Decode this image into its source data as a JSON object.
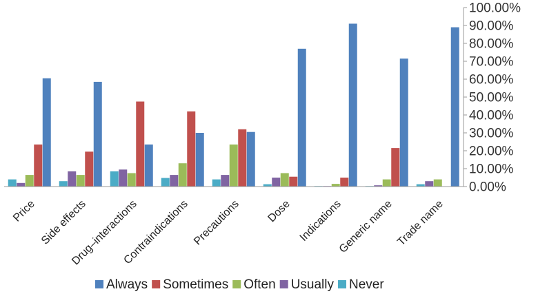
{
  "chart_data": {
    "type": "bar",
    "categories": [
      "Price",
      "Side effects",
      "Drug–interactions",
      "Contraindications",
      "Precautions",
      "Dose",
      "Indications",
      "Generic name",
      "Trade name"
    ],
    "series": [
      {
        "name": "Never",
        "color": "#4bacc6",
        "values": [
          4.0,
          3.0,
          8.5,
          4.8,
          4.0,
          1.3,
          0.3,
          0.3,
          1.3
        ]
      },
      {
        "name": "Usually",
        "color": "#8064a2",
        "values": [
          2.0,
          8.5,
          9.5,
          6.5,
          6.5,
          5.0,
          0.3,
          0.7,
          3.0
        ]
      },
      {
        "name": "Often",
        "color": "#9bbb59",
        "values": [
          6.5,
          6.5,
          7.5,
          13.0,
          23.5,
          7.5,
          1.5,
          4.0,
          4.0
        ]
      },
      {
        "name": "Sometimes",
        "color": "#c0504d",
        "values": [
          23.5,
          19.5,
          47.5,
          42.0,
          32.0,
          5.5,
          5.0,
          21.5,
          0
        ]
      },
      {
        "name": "Always",
        "color": "#4f81bd",
        "values": [
          60.5,
          58.5,
          23.5,
          30.0,
          30.5,
          77.0,
          91.0,
          71.5,
          89.0
        ]
      }
    ],
    "legend_order": [
      "Always",
      "Sometimes",
      "Often",
      "Usually",
      "Never"
    ],
    "ylim": [
      0,
      100
    ],
    "yticks": [
      "0.00%",
      "10.00%",
      "20.00%",
      "30.00%",
      "40.00%",
      "50.00%",
      "60.00%",
      "70.00%",
      "80.00%",
      "90.00%",
      "100.00%"
    ],
    "y_axis_position": "right",
    "legend_position": "bottom",
    "grid": false,
    "title": "",
    "xlabel": "",
    "ylabel": ""
  }
}
